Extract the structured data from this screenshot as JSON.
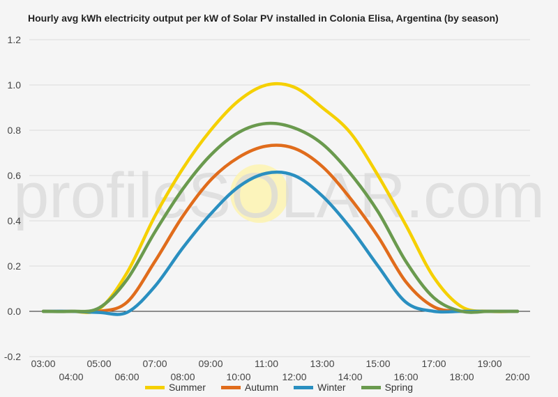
{
  "chart_data": {
    "type": "line",
    "title": "Hourly avg kWh electricity output per kW of Solar PV installed in Colonia Elisa, Argentina (by season)",
    "xlabel": "",
    "ylabel": "",
    "x": [
      "03:00",
      "04:00",
      "05:00",
      "06:00",
      "07:00",
      "08:00",
      "09:00",
      "10:00",
      "11:00",
      "12:00",
      "13:00",
      "14:00",
      "15:00",
      "16:00",
      "17:00",
      "18:00",
      "19:00",
      "20:00"
    ],
    "ylim": [
      -0.2,
      1.2
    ],
    "yticks": [
      "-0.2",
      "0.0",
      "0.2",
      "0.4",
      "0.6",
      "0.8",
      "1.0",
      "1.2"
    ],
    "grid": true,
    "legend_position": "bottom",
    "series": [
      {
        "name": "Summer",
        "color": "#f5d000",
        "values": [
          0.0,
          0.0,
          0.01,
          0.17,
          0.42,
          0.63,
          0.8,
          0.93,
          1.0,
          0.99,
          0.9,
          0.79,
          0.6,
          0.38,
          0.15,
          0.02,
          0.0,
          0.0
        ]
      },
      {
        "name": "Autumn",
        "color": "#e06c1c",
        "values": [
          0.0,
          0.0,
          0.0,
          0.04,
          0.22,
          0.42,
          0.58,
          0.68,
          0.73,
          0.72,
          0.64,
          0.5,
          0.33,
          0.13,
          0.02,
          0.0,
          0.0,
          0.0
        ]
      },
      {
        "name": "Winter",
        "color": "#2a8fc0",
        "values": [
          0.0,
          0.0,
          -0.005,
          -0.005,
          0.11,
          0.28,
          0.43,
          0.55,
          0.61,
          0.6,
          0.51,
          0.37,
          0.2,
          0.04,
          0.0,
          0.0,
          0.0,
          0.0
        ]
      },
      {
        "name": "Spring",
        "color": "#6a9a4e",
        "values": [
          0.0,
          0.0,
          0.015,
          0.14,
          0.35,
          0.54,
          0.69,
          0.79,
          0.83,
          0.81,
          0.74,
          0.61,
          0.44,
          0.22,
          0.06,
          0.0,
          0.0,
          0.0
        ]
      }
    ]
  },
  "watermark": "profileSOLAR.com"
}
